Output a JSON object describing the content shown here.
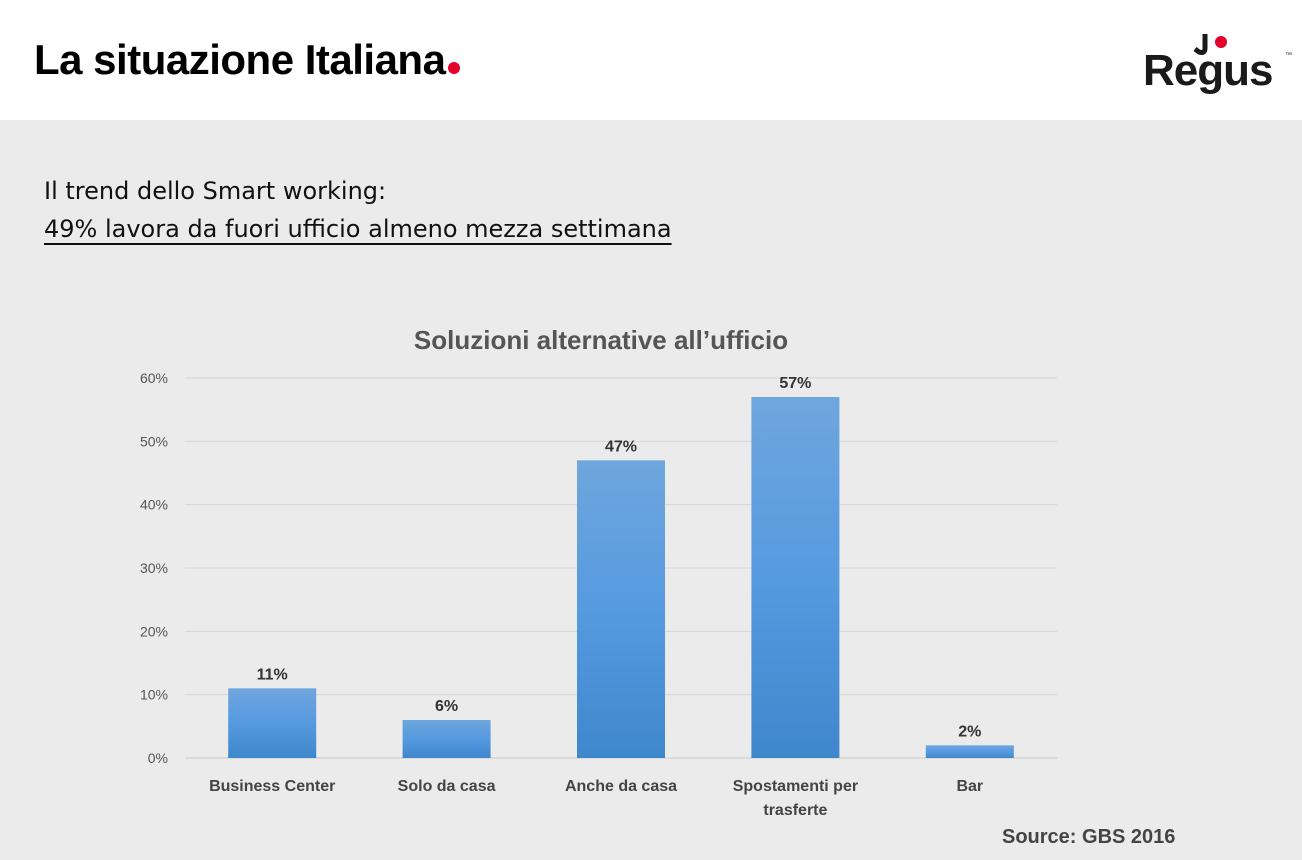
{
  "header": {
    "title": "La situazione Italiana",
    "logo_text": "Regus",
    "logo_tm": "™"
  },
  "subtitle": {
    "line1": "Il trend dello Smart working:",
    "line2": "49% lavora da fuori ufficio almeno mezza settimana"
  },
  "source": "Source: GBS 2016",
  "colors": {
    "accent": "#e4002b",
    "bar_top": "#6fa6de",
    "bar_bottom": "#3f87cc"
  },
  "chart_data": {
    "type": "bar",
    "title": "Soluzioni alternative all’ufficio",
    "categories": [
      [
        "Business Center"
      ],
      [
        "Solo da casa"
      ],
      [
        "Anche da casa"
      ],
      [
        "Spostamenti per",
        "trasferte"
      ],
      [
        "Bar"
      ]
    ],
    "values": [
      11,
      6,
      47,
      57,
      2
    ],
    "data_labels": [
      "11%",
      "6%",
      "47%",
      "57%",
      "2%"
    ],
    "y_ticks": [
      "0%",
      "10%",
      "20%",
      "30%",
      "40%",
      "50%",
      "60%"
    ],
    "ylim": [
      0,
      60
    ],
    "grid": true,
    "xlabel": "",
    "ylabel": ""
  }
}
